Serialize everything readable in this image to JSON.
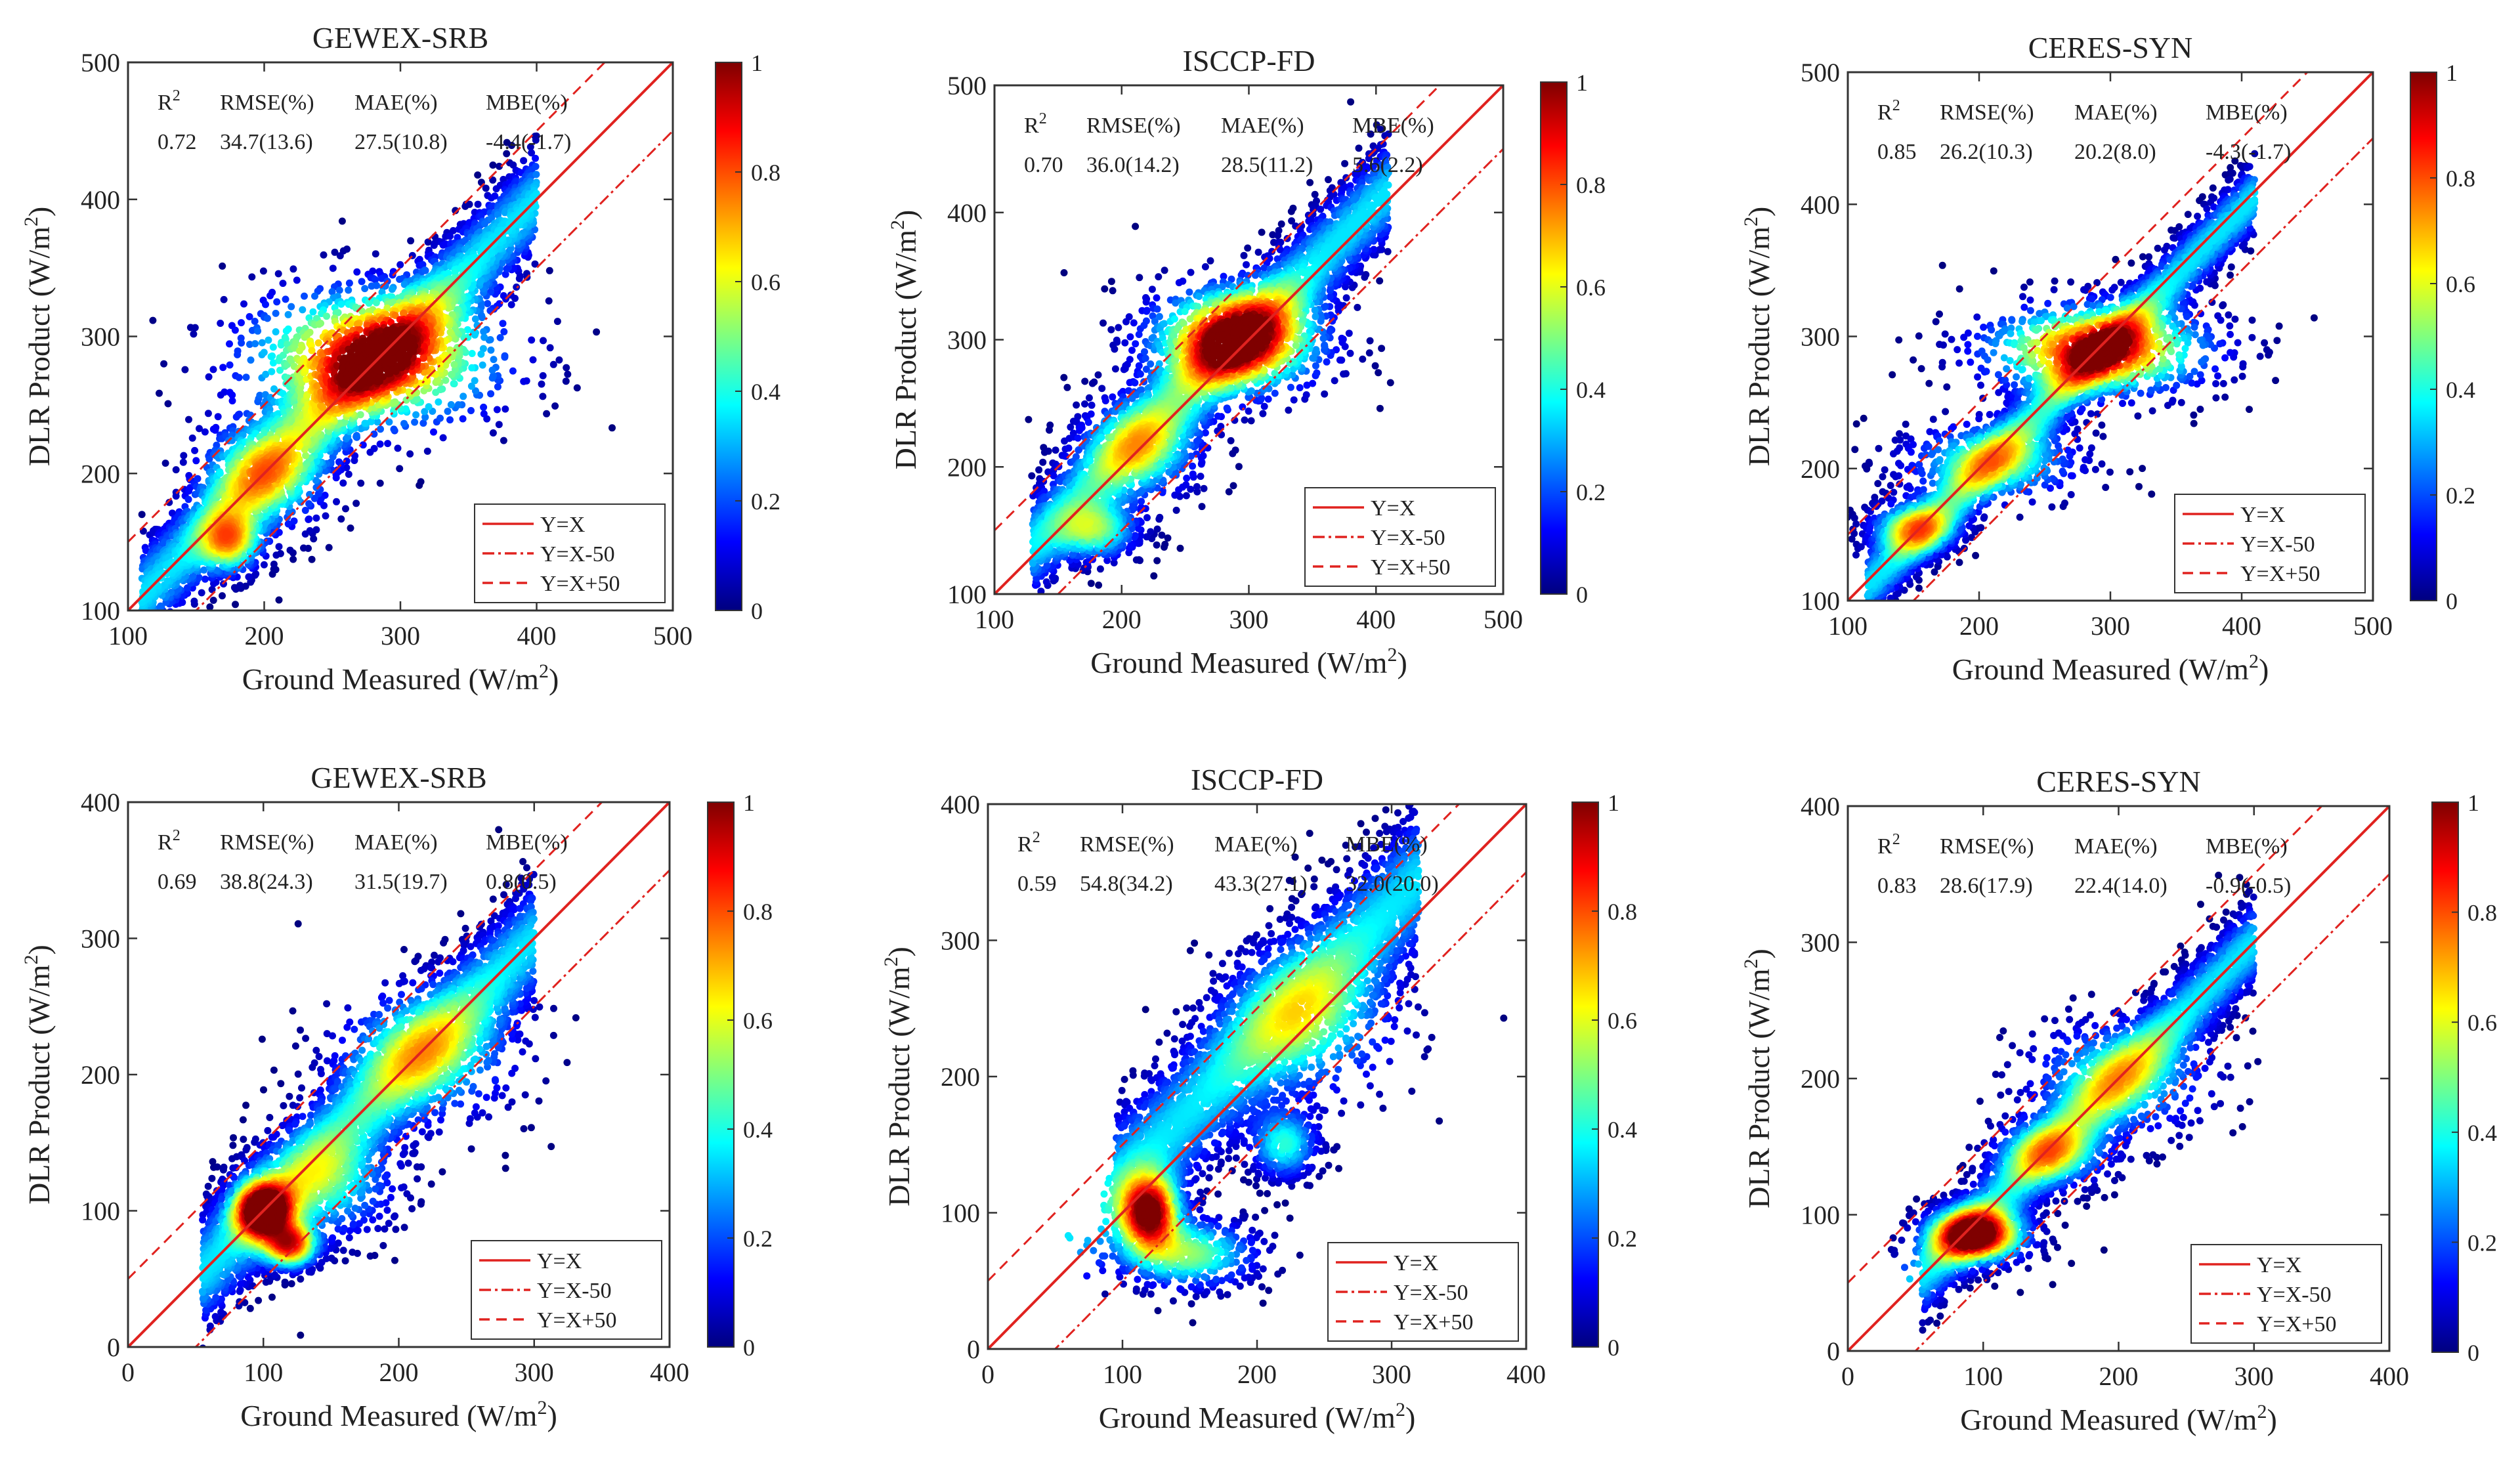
{
  "legend_labels": [
    "Y=X",
    "Y=X-50",
    "Y=X+50"
  ],
  "colors": {
    "line": "#e0221f",
    "jet": [
      "#00007f",
      "#0000ff",
      "#007fff",
      "#00ffff",
      "#7fff7f",
      "#ffff00",
      "#ff7f00",
      "#ff0000",
      "#7f0000"
    ]
  },
  "stats_headers": [
    "R",
    "RMSE(%)",
    "MAE(%)",
    "MBE(%)"
  ],
  "r2_superscript": "2",
  "chart_data": [
    {
      "type": "scatter",
      "title": "GEWEX-SRB",
      "xlabel": "Ground Measured (W/m",
      "ylabel": "DLR Product (W/m",
      "label_superscript": "2",
      "label_close": ")",
      "xlim": [
        100,
        500
      ],
      "ylim": [
        100,
        500
      ],
      "xticks": [
        "100",
        "200",
        "300",
        "400",
        "500"
      ],
      "yticks": [
        "100",
        "200",
        "300",
        "400",
        "500"
      ],
      "stats": [
        "0.72",
        "34.7(13.6)",
        "27.5(10.8)",
        "-4.4(-1.7)"
      ],
      "colorbar_ticks": [
        "0",
        "0.2",
        "0.4",
        "0.6",
        "0.8",
        "1"
      ],
      "clusters": [
        [
          280,
          285,
          55,
          30,
          0.9
        ],
        [
          175,
          150,
          14,
          14,
          0.55
        ],
        [
          200,
          200,
          30,
          25,
          0.45
        ]
      ],
      "cloud": {
        "xmin": 110,
        "xmax": 400,
        "spread": 40,
        "slope": 1.0,
        "offset": 0
      }
    },
    {
      "type": "scatter",
      "title": "ISCCP-FD",
      "xlabel": "Ground Measured (W/m",
      "ylabel": "DLR Product (W/m",
      "label_superscript": "2",
      "label_close": ")",
      "xlim": [
        100,
        500
      ],
      "ylim": [
        100,
        500
      ],
      "xticks": [
        "100",
        "200",
        "300",
        "400",
        "500"
      ],
      "yticks": [
        "100",
        "200",
        "300",
        "400",
        "500"
      ],
      "stats": [
        "0.70",
        "36.0(14.2)",
        "28.5(11.2)",
        "5.6(2.2)"
      ],
      "colorbar_ticks": [
        "0",
        "0.2",
        "0.4",
        "0.6",
        "0.8",
        "1"
      ],
      "clusters": [
        [
          290,
          300,
          40,
          25,
          0.95
        ],
        [
          180,
          150,
          20,
          14,
          0.45
        ],
        [
          215,
          215,
          30,
          25,
          0.4
        ]
      ],
      "cloud": {
        "xmin": 130,
        "xmax": 410,
        "spread": 42,
        "slope": 1.0,
        "offset": 8
      }
    },
    {
      "type": "scatter",
      "title": "CERES-SYN",
      "xlabel": "Ground Measured (W/m",
      "ylabel": "DLR Product (W/m",
      "label_superscript": "2",
      "label_close": ")",
      "xlim": [
        100,
        500
      ],
      "ylim": [
        100,
        500
      ],
      "xticks": [
        "100",
        "200",
        "300",
        "400",
        "500"
      ],
      "yticks": [
        "100",
        "200",
        "300",
        "400",
        "500"
      ],
      "stats": [
        "0.85",
        "26.2(10.3)",
        "20.2(8.0)",
        "-4.3(-1.7)"
      ],
      "colorbar_ticks": [
        "0",
        "0.2",
        "0.4",
        "0.6",
        "0.8",
        "1"
      ],
      "clusters": [
        [
          290,
          290,
          50,
          20,
          0.9
        ],
        [
          150,
          155,
          20,
          12,
          0.5
        ],
        [
          210,
          205,
          40,
          18,
          0.45
        ]
      ],
      "cloud": {
        "xmin": 115,
        "xmax": 410,
        "spread": 28,
        "slope": 1.0,
        "offset": -4
      }
    },
    {
      "type": "scatter",
      "title": "GEWEX-SRB",
      "xlabel": "Ground Measured (W/m",
      "ylabel": "DLR Product (W/m",
      "label_superscript": "2",
      "label_close": ")",
      "xlim": [
        0,
        400
      ],
      "ylim": [
        0,
        400
      ],
      "xticks": [
        "0",
        "100",
        "200",
        "300",
        "400"
      ],
      "yticks": [
        "0",
        "100",
        "200",
        "300",
        "400"
      ],
      "stats": [
        "0.69",
        "38.8(24.3)",
        "31.5(19.7)",
        "0.8(0.5)"
      ],
      "colorbar_ticks": [
        "0",
        "0.2",
        "0.4",
        "0.6",
        "0.8",
        "1"
      ],
      "clusters": [
        [
          100,
          100,
          14,
          14,
          0.95
        ],
        [
          120,
          75,
          12,
          10,
          0.75
        ],
        [
          220,
          215,
          40,
          30,
          0.4
        ],
        [
          150,
          120,
          30,
          25,
          0.35
        ]
      ],
      "cloud": {
        "xmin": 55,
        "xmax": 300,
        "spread": 45,
        "slope": 1.0,
        "offset": 0
      }
    },
    {
      "type": "scatter",
      "title": "ISCCP-FD",
      "xlabel": "Ground Measured (W/m",
      "ylabel": "DLR Product (W/m",
      "label_superscript": "2",
      "label_close": ")",
      "xlim": [
        0,
        400
      ],
      "ylim": [
        0,
        400
      ],
      "xticks": [
        "0",
        "100",
        "200",
        "300",
        "400"
      ],
      "yticks": [
        "0",
        "100",
        "200",
        "300",
        "400"
      ],
      "stats": [
        "0.59",
        "54.8(34.2)",
        "43.3(27.1)",
        "32.0(20.0)"
      ],
      "colorbar_ticks": [
        "0",
        "0.2",
        "0.4",
        "0.6",
        "0.8",
        "1"
      ],
      "clusters": [
        [
          120,
          100,
          14,
          18,
          0.95
        ],
        [
          150,
          70,
          30,
          15,
          0.5
        ],
        [
          240,
          240,
          40,
          35,
          0.35
        ],
        [
          220,
          150,
          15,
          15,
          0.4
        ]
      ],
      "cloud": {
        "xmin": 95,
        "xmax": 320,
        "spread": 55,
        "slope": 1.0,
        "offset": 25
      }
    },
    {
      "type": "scatter",
      "title": "CERES-SYN",
      "xlabel": "Ground Measured (W/m",
      "ylabel": "DLR Product (W/m",
      "label_superscript": "2",
      "label_close": ")",
      "xlim": [
        0,
        400
      ],
      "ylim": [
        0,
        400
      ],
      "xticks": [
        "0",
        "100",
        "200",
        "300",
        "400"
      ],
      "yticks": [
        "0",
        "100",
        "200",
        "300",
        "400"
      ],
      "stats": [
        "0.83",
        "28.6(17.9)",
        "22.4(14.0)",
        "-0.9(-0.5)"
      ],
      "colorbar_ticks": [
        "0",
        "0.2",
        "0.4",
        "0.6",
        "0.8",
        "1"
      ],
      "clusters": [
        [
          95,
          85,
          22,
          12,
          0.95
        ],
        [
          200,
          200,
          40,
          25,
          0.4
        ],
        [
          150,
          145,
          25,
          15,
          0.45
        ]
      ],
      "cloud": {
        "xmin": 55,
        "xmax": 300,
        "spread": 32,
        "slope": 1.0,
        "offset": 0
      }
    }
  ]
}
